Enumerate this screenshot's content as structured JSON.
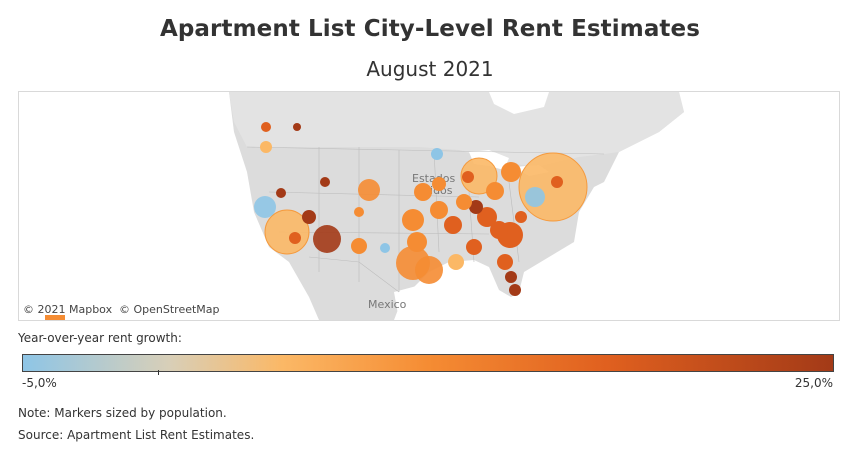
{
  "header": {
    "title": "Apartment List City-Level Rent Estimates",
    "subtitle": "August 2021"
  },
  "map": {
    "place_labels": [
      "Estados",
      "Unidos",
      "Mexico"
    ],
    "attribution": [
      "© 2021 Mapbox",
      "© OpenStreetMap"
    ],
    "land_color": "#dcdcdc",
    "water_color": "#ffffff"
  },
  "legend": {
    "title": "Year-over-year rent growth:",
    "min_label": "-5,0%",
    "max_label": "25,0%",
    "color_low": "#8ec5e6",
    "color_mid": "#f58c33",
    "color_high": "#a33a17"
  },
  "footer": {
    "note": "Note: Markers sized by population.",
    "source": "Source: Apartment List Rent Estimates."
  }
}
